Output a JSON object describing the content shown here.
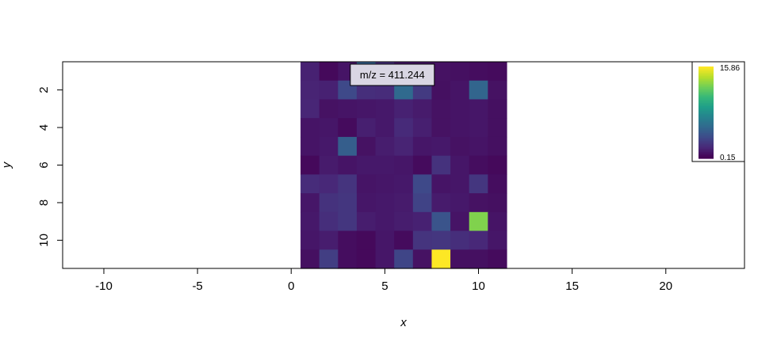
{
  "chart_data": {
    "type": "heatmap",
    "title": "",
    "xlabel": "x",
    "ylabel": "y",
    "xlim": [
      -12.2,
      24.2
    ],
    "ylim": [
      11.5,
      0.5
    ],
    "y_reversed": true,
    "xticks": [
      -10,
      -5,
      0,
      5,
      10,
      15,
      20
    ],
    "yticks": [
      2,
      4,
      6,
      8,
      10
    ],
    "x_range": [
      1,
      11
    ],
    "y_range": [
      1,
      11
    ],
    "values": [
      [
        1.6,
        0.5,
        1.0,
        5.0,
        2.2,
        1.1,
        1.0,
        0.9,
        0.8,
        0.7,
        0.6
      ],
      [
        1.7,
        1.6,
        3.6,
        2.2,
        2.1,
        5.5,
        2.8,
        0.8,
        1.0,
        5.2,
        0.9
      ],
      [
        1.8,
        0.9,
        1.0,
        1.1,
        1.2,
        1.6,
        1.3,
        0.9,
        1.0,
        1.1,
        0.8
      ],
      [
        1.0,
        1.1,
        0.6,
        1.5,
        1.2,
        2.0,
        1.5,
        0.9,
        1.0,
        1.1,
        0.8
      ],
      [
        1.0,
        1.2,
        4.8,
        0.9,
        1.4,
        1.7,
        1.1,
        1.2,
        0.9,
        1.0,
        0.8
      ],
      [
        0.5,
        1.3,
        1.0,
        1.2,
        1.2,
        1.1,
        0.6,
        2.4,
        1.1,
        0.7,
        0.5
      ],
      [
        2.1,
        1.9,
        2.5,
        1.0,
        1.1,
        1.2,
        3.6,
        1.0,
        1.1,
        2.6,
        0.7
      ],
      [
        1.1,
        2.4,
        2.6,
        1.1,
        1.2,
        1.3,
        3.3,
        1.3,
        1.2,
        0.9,
        0.8
      ],
      [
        1.2,
        2.2,
        2.6,
        1.4,
        1.2,
        1.4,
        1.6,
        4.2,
        1.0,
        12.8,
        1.0
      ],
      [
        1.1,
        1.4,
        0.7,
        0.5,
        1.1,
        0.6,
        2.5,
        2.6,
        2.2,
        1.9,
        1.1
      ],
      [
        0.8,
        3.0,
        0.7,
        0.5,
        1.1,
        3.4,
        0.9,
        15.86,
        0.8,
        0.8,
        0.6
      ]
    ],
    "colorbar": {
      "min": "0.15",
      "max": "15.86",
      "min_value": 0.15,
      "max_value": 15.86
    },
    "colormap": [
      "#440154",
      "#482878",
      "#3e4a89",
      "#31688e",
      "#26828e",
      "#1f9e89",
      "#35b779",
      "#6ece58",
      "#b5de2b",
      "#fde725"
    ],
    "grid": false,
    "legend_position": "top-right",
    "annotation": {
      "label": "m/z = 411.244",
      "position": "top"
    }
  }
}
